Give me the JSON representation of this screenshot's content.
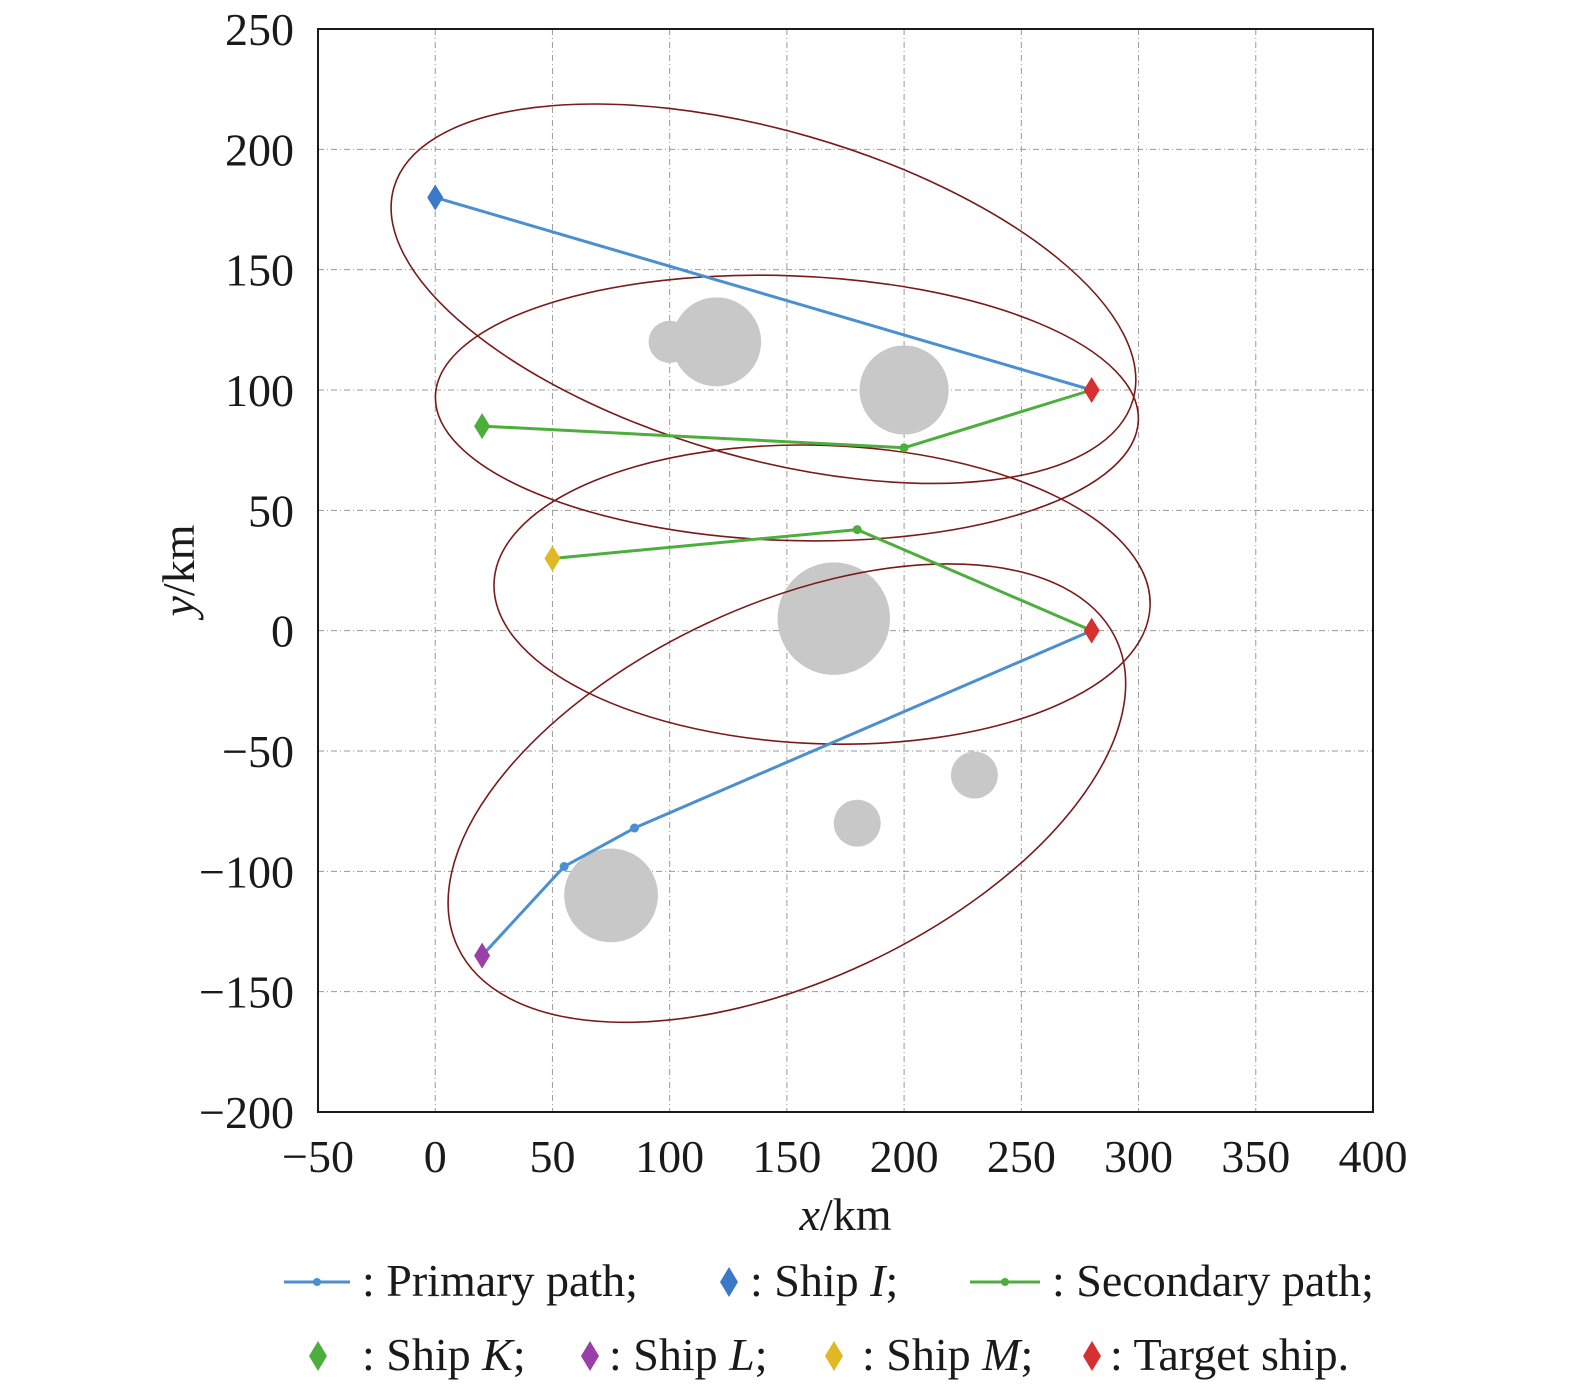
{
  "chart_data": {
    "type": "scatter",
    "xlabel": {
      "var": "x",
      "unit": "/km"
    },
    "ylabel": {
      "var": "y",
      "unit": "/km"
    },
    "xlim": [
      -50,
      400
    ],
    "ylim": [
      -200,
      250
    ],
    "xticks": [
      -50,
      0,
      50,
      100,
      150,
      200,
      250,
      300,
      350,
      400
    ],
    "yticks": [
      -200,
      -150,
      -100,
      -50,
      0,
      50,
      100,
      150,
      200,
      250
    ],
    "grid": true,
    "obstacles": [
      {
        "cx": 100,
        "cy": 120,
        "r": 9
      },
      {
        "cx": 120,
        "cy": 120,
        "r": 19
      },
      {
        "cx": 200,
        "cy": 100,
        "r": 19
      },
      {
        "cx": 170,
        "cy": 5,
        "r": 24
      },
      {
        "cx": 230,
        "cy": -60,
        "r": 10
      },
      {
        "cx": 180,
        "cy": -80,
        "r": 10
      },
      {
        "cx": 75,
        "cy": -110,
        "r": 20
      }
    ],
    "ellipses": [
      {
        "cx": 140,
        "cy": 140,
        "rx": 164,
        "ry": 68,
        "angle": -16
      },
      {
        "cx": 150,
        "cy": 92.5,
        "rx": 150,
        "ry": 55,
        "angle": -2
      },
      {
        "cx": 165,
        "cy": 15,
        "rx": 140,
        "ry": 62,
        "angle": -2
      },
      {
        "cx": 150,
        "cy": -67.5,
        "rx": 155,
        "ry": 78,
        "angle": 25
      }
    ],
    "series": [
      {
        "kind": "primary",
        "color": "#4a8fd0",
        "points": [
          [
            0,
            180
          ],
          [
            280,
            100
          ]
        ]
      },
      {
        "kind": "primary",
        "color": "#4a8fd0",
        "points": [
          [
            20,
            -135
          ],
          [
            55,
            -98
          ],
          [
            85,
            -82
          ],
          [
            280,
            0
          ]
        ]
      },
      {
        "kind": "secondary",
        "color": "#4caf3d",
        "points": [
          [
            20,
            85
          ],
          [
            200,
            76
          ],
          [
            280,
            100
          ]
        ]
      },
      {
        "kind": "secondary",
        "color": "#4caf3d",
        "points": [
          [
            50,
            30
          ],
          [
            180,
            42
          ],
          [
            280,
            0
          ]
        ]
      }
    ],
    "ships": [
      {
        "name": "I",
        "x": 0,
        "y": 180,
        "color": "#3a78c8"
      },
      {
        "name": "K",
        "x": 20,
        "y": 85,
        "color": "#4caf3d"
      },
      {
        "name": "L",
        "x": 20,
        "y": -135,
        "color": "#9b3fa8"
      },
      {
        "name": "M",
        "x": 50,
        "y": 30,
        "color": "#e0b823"
      },
      {
        "name": "Target",
        "x": 280,
        "y": 100,
        "color": "#d63030"
      },
      {
        "name": "Target",
        "x": 280,
        "y": 0,
        "color": "#d63030"
      }
    ],
    "colors": {
      "ellipse": "#7a1a1a",
      "obstacle": "#c8c8c8"
    },
    "legend": {
      "placement": "bottom",
      "row1": [
        {
          "marker": "line",
          "color": "#4a8fd0",
          "text": ": Primary path;"
        },
        {
          "marker": "diamond",
          "color": "#3a78c8",
          "text_prefix": ": Ship ",
          "text_italic": "I",
          "text_suffix": ";"
        },
        {
          "marker": "line",
          "color": "#4caf3d",
          "text": ": Secondary path;"
        }
      ],
      "row2": [
        {
          "marker": "diamond",
          "color": "#4caf3d",
          "text_prefix": ": Ship ",
          "text_italic": "K",
          "text_suffix": ";"
        },
        {
          "marker": "diamond",
          "color": "#9b3fa8",
          "text_prefix": ": Ship ",
          "text_italic": "L",
          "text_suffix": ";"
        },
        {
          "marker": "diamond",
          "color": "#e0b823",
          "text_prefix": ": Ship ",
          "text_italic": "M",
          "text_suffix": ";"
        },
        {
          "marker": "diamond",
          "color": "#d63030",
          "text": ": Target ship."
        }
      ]
    }
  }
}
